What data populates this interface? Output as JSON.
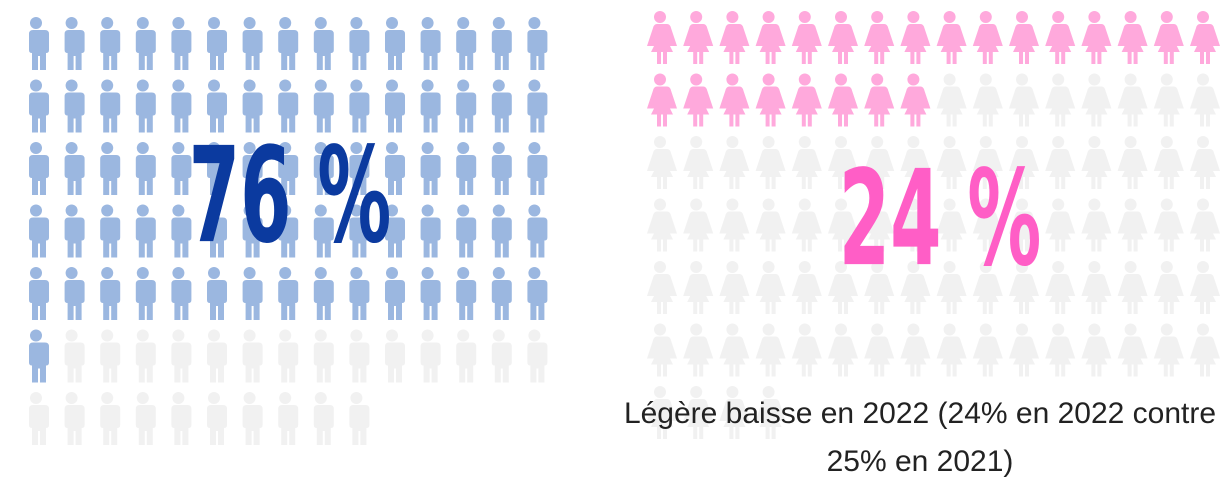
{
  "chart_data": [
    {
      "type": "pictogram",
      "value": 76,
      "value_label": "76 %",
      "total": 100,
      "color": "#9bb7e0",
      "empty_color": "#f1f1f1",
      "label_color": "#0b3a9f",
      "icon": "man"
    },
    {
      "type": "pictogram",
      "value": 24,
      "value_label": "24 %",
      "total": 100,
      "color": "#ffa9dc",
      "empty_color": "#f1f1f1",
      "label_color": "#ff5ec6",
      "icon": "woman",
      "note": "Légère baisse en 2022 (24% en 2022 contre 25% en 2021)"
    }
  ]
}
